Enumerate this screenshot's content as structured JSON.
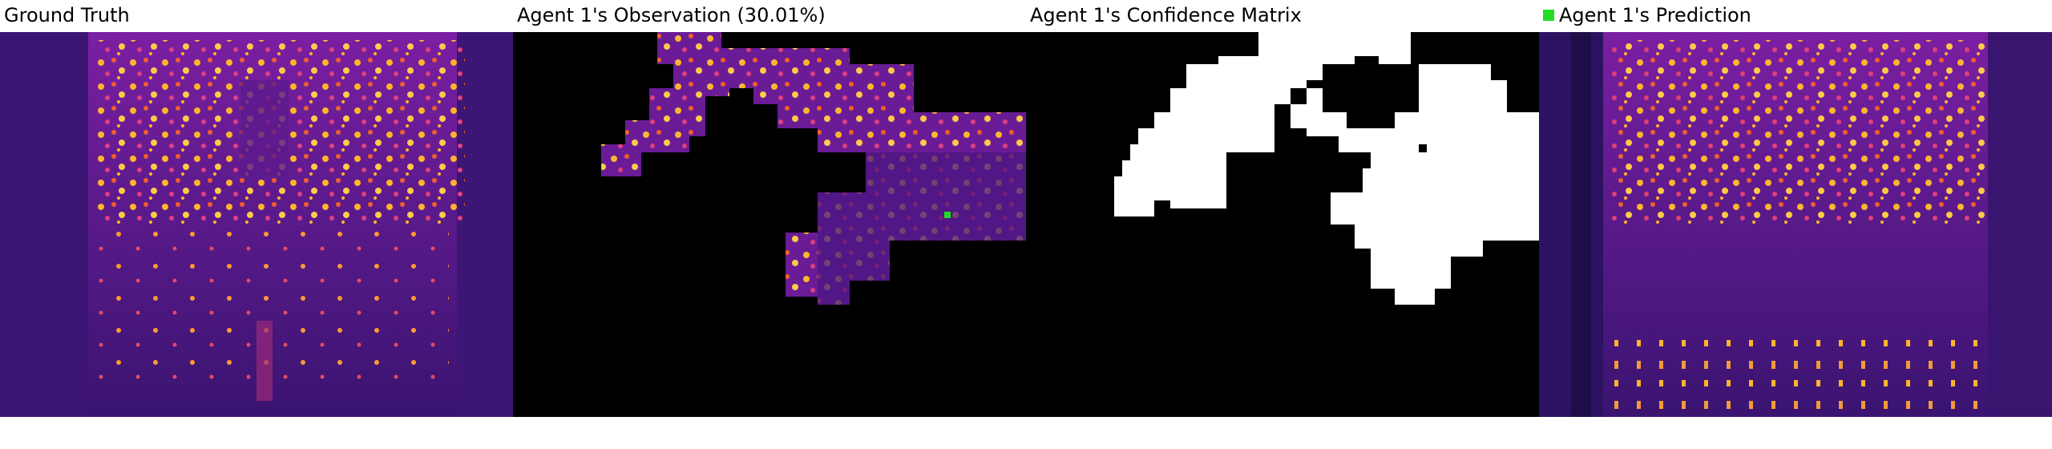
{
  "panels": [
    {
      "id": "ground-truth",
      "title": "Ground Truth"
    },
    {
      "id": "observation",
      "title": "Agent 1's Observation (30.01%)"
    },
    {
      "id": "confidence",
      "title": "Agent 1's Confidence Matrix"
    },
    {
      "id": "prediction",
      "title": "Agent 1's Prediction",
      "legend_color": "#22dd22"
    }
  ],
  "colors": {
    "thermal_bg": "#3a1470",
    "thermal_mid": "#7a1fa0",
    "thermal_hot": "#e0407a",
    "thermal_bright": "#ffb52a",
    "mask_on": "#ffffff",
    "mask_off": "#000000",
    "agent_marker": "#22dd22"
  }
}
